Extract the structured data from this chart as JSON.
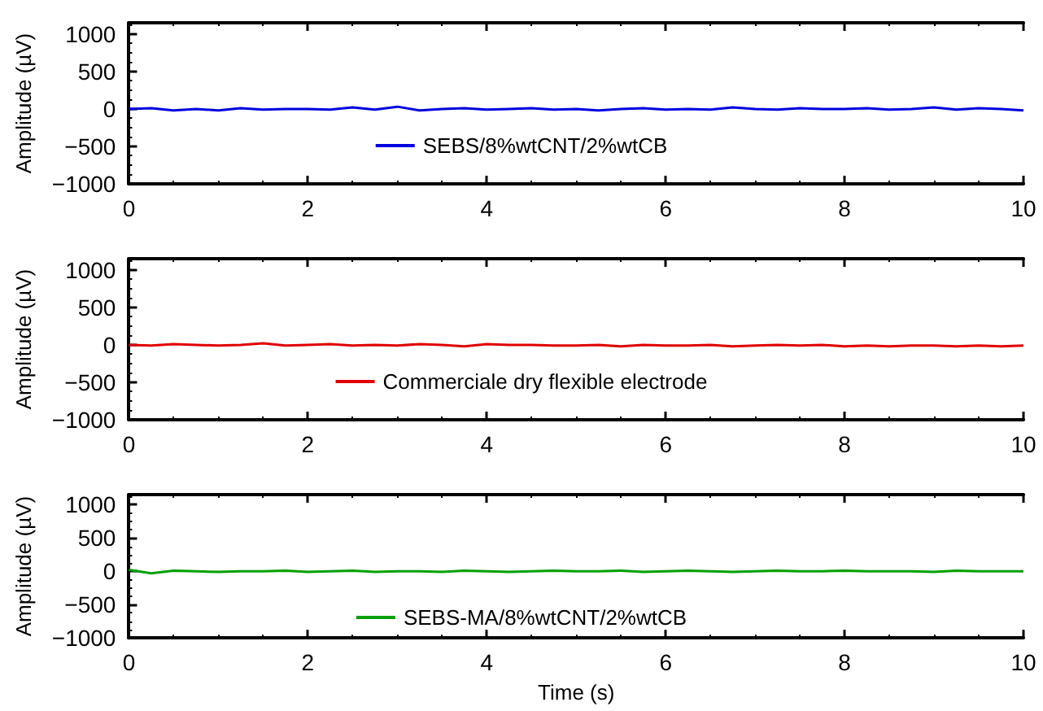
{
  "chart_data": [
    {
      "type": "line",
      "ylabel": "Amplitude (µV)",
      "xlim": [
        0,
        10
      ],
      "xticks": [
        0,
        2,
        4,
        6,
        8,
        10
      ],
      "ylim": [
        -1000,
        1150
      ],
      "yticks": [
        -1000,
        -500,
        0,
        500,
        1000
      ],
      "legend": "bottom",
      "grid": false,
      "marker": "none",
      "line_style": "solid",
      "x": [
        0,
        0.25,
        0.5,
        0.75,
        1,
        1.25,
        1.5,
        1.75,
        2,
        2.25,
        2.5,
        2.75,
        3,
        3.25,
        3.5,
        3.75,
        4,
        4.25,
        4.5,
        4.75,
        5,
        5.25,
        5.5,
        5.75,
        6,
        6.25,
        6.5,
        6.75,
        7,
        7.25,
        7.5,
        7.75,
        8,
        8.25,
        8.5,
        8.75,
        9,
        9.25,
        9.5,
        9.75,
        10
      ],
      "series": [
        {
          "name": "SEBS/8%wtCNT/2%wtCB",
          "color": "#0000e0",
          "values": [
            0,
            10,
            -20,
            0,
            -20,
            10,
            -10,
            0,
            0,
            -10,
            20,
            -10,
            30,
            -20,
            0,
            10,
            -10,
            0,
            10,
            -10,
            0,
            -20,
            0,
            10,
            -10,
            0,
            -10,
            20,
            0,
            -10,
            10,
            0,
            0,
            10,
            -10,
            0,
            20,
            -10,
            10,
            0,
            -20
          ]
        }
      ]
    },
    {
      "type": "line",
      "ylabel": "Amplitude (µV)",
      "xlim": [
        0,
        10
      ],
      "xticks": [
        0,
        2,
        4,
        6,
        8,
        10
      ],
      "ylim": [
        -1000,
        1150
      ],
      "yticks": [
        -1000,
        -500,
        0,
        500,
        1000
      ],
      "legend": "bottom",
      "grid": false,
      "marker": "none",
      "line_style": "solid",
      "x": [
        0,
        0.25,
        0.5,
        0.75,
        1,
        1.25,
        1.5,
        1.75,
        2,
        2.25,
        2.5,
        2.75,
        3,
        3.25,
        3.5,
        3.75,
        4,
        4.25,
        4.5,
        4.75,
        5,
        5.25,
        5.5,
        5.75,
        6,
        6.25,
        6.5,
        6.75,
        7,
        7.25,
        7.5,
        7.75,
        8,
        8.25,
        8.5,
        8.75,
        9,
        9.25,
        9.5,
        9.75,
        10
      ],
      "series": [
        {
          "name": "Commerciale dry flexible electrode",
          "color": "#e00000",
          "values": [
            0,
            -10,
            10,
            0,
            -10,
            0,
            20,
            -10,
            0,
            10,
            -10,
            0,
            -10,
            10,
            0,
            -20,
            10,
            0,
            0,
            -10,
            -10,
            0,
            -20,
            0,
            -10,
            -10,
            0,
            -20,
            -10,
            0,
            -10,
            0,
            -20,
            -10,
            -20,
            -10,
            -10,
            -20,
            -10,
            -20,
            -10
          ]
        }
      ]
    },
    {
      "type": "line",
      "ylabel": "Amplitude (µV)",
      "xlabel": "Time (s)",
      "xlim": [
        0,
        10
      ],
      "xticks": [
        0,
        2,
        4,
        6,
        8,
        10
      ],
      "ylim": [
        -1000,
        1150
      ],
      "yticks": [
        -1000,
        -500,
        0,
        500,
        1000
      ],
      "legend": "bottom",
      "grid": false,
      "marker": "none",
      "line_style": "solid",
      "x": [
        0,
        0.25,
        0.5,
        0.75,
        1,
        1.25,
        1.5,
        1.75,
        2,
        2.25,
        2.5,
        2.75,
        3,
        3.25,
        3.5,
        3.75,
        4,
        4.25,
        4.5,
        4.75,
        5,
        5.25,
        5.5,
        5.75,
        6,
        6.25,
        6.5,
        6.75,
        7,
        7.25,
        7.5,
        7.75,
        8,
        8.25,
        8.5,
        8.75,
        9,
        9.25,
        9.5,
        9.75,
        10
      ],
      "series": [
        {
          "name": "SEBS-MA/8%wtCNT/2%wtCB",
          "color": "#00a000",
          "values": [
            20,
            -30,
            10,
            0,
            -10,
            0,
            0,
            10,
            -10,
            0,
            10,
            -10,
            0,
            0,
            -10,
            10,
            0,
            -10,
            0,
            10,
            0,
            0,
            10,
            -10,
            0,
            10,
            0,
            -10,
            0,
            10,
            0,
            0,
            10,
            0,
            0,
            0,
            -10,
            10,
            0,
            0,
            0
          ]
        }
      ]
    }
  ]
}
